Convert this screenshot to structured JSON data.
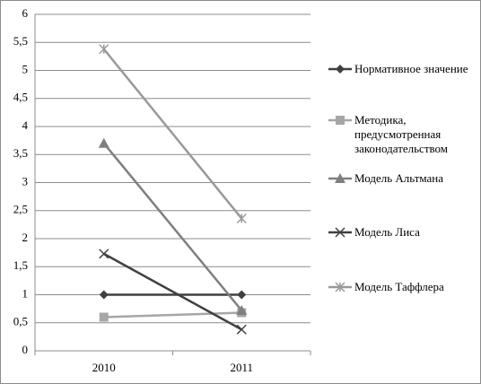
{
  "chart_data": {
    "type": "line",
    "categories": [
      "2010",
      "2011"
    ],
    "series": [
      {
        "name": "Нормативное значение",
        "color": "#404040",
        "marker": "diamond",
        "values": [
          1,
          1
        ]
      },
      {
        "name": "Методика, предусмотренная законодательством",
        "color": "#a6a6a6",
        "marker": "square",
        "values": [
          0.6,
          0.68
        ]
      },
      {
        "name": "Модель Альтмана",
        "color": "#7f7f7f",
        "marker": "triangle",
        "values": [
          3.7,
          0.72
        ]
      },
      {
        "name": "Модель Лиса",
        "color": "#404040",
        "marker": "x",
        "values": [
          1.73,
          0.38
        ]
      },
      {
        "name": "Модель Таффлера",
        "color": "#999999",
        "marker": "star",
        "values": [
          5.38,
          2.36
        ]
      }
    ],
    "ylim": [
      0,
      6
    ],
    "yticks": [
      0,
      {
        "value": 0.5,
        "label": "0,5"
      },
      1,
      {
        "value": 1.5,
        "label": "1,5"
      },
      2,
      {
        "value": 2.5,
        "label": "2,5"
      },
      3,
      {
        "value": 3.5,
        "label": "3,5"
      },
      4,
      {
        "value": 4.5,
        "label": "4,5"
      },
      5,
      {
        "value": 5.5,
        "label": "5,5"
      },
      6
    ],
    "grid": true,
    "legend": "right"
  }
}
